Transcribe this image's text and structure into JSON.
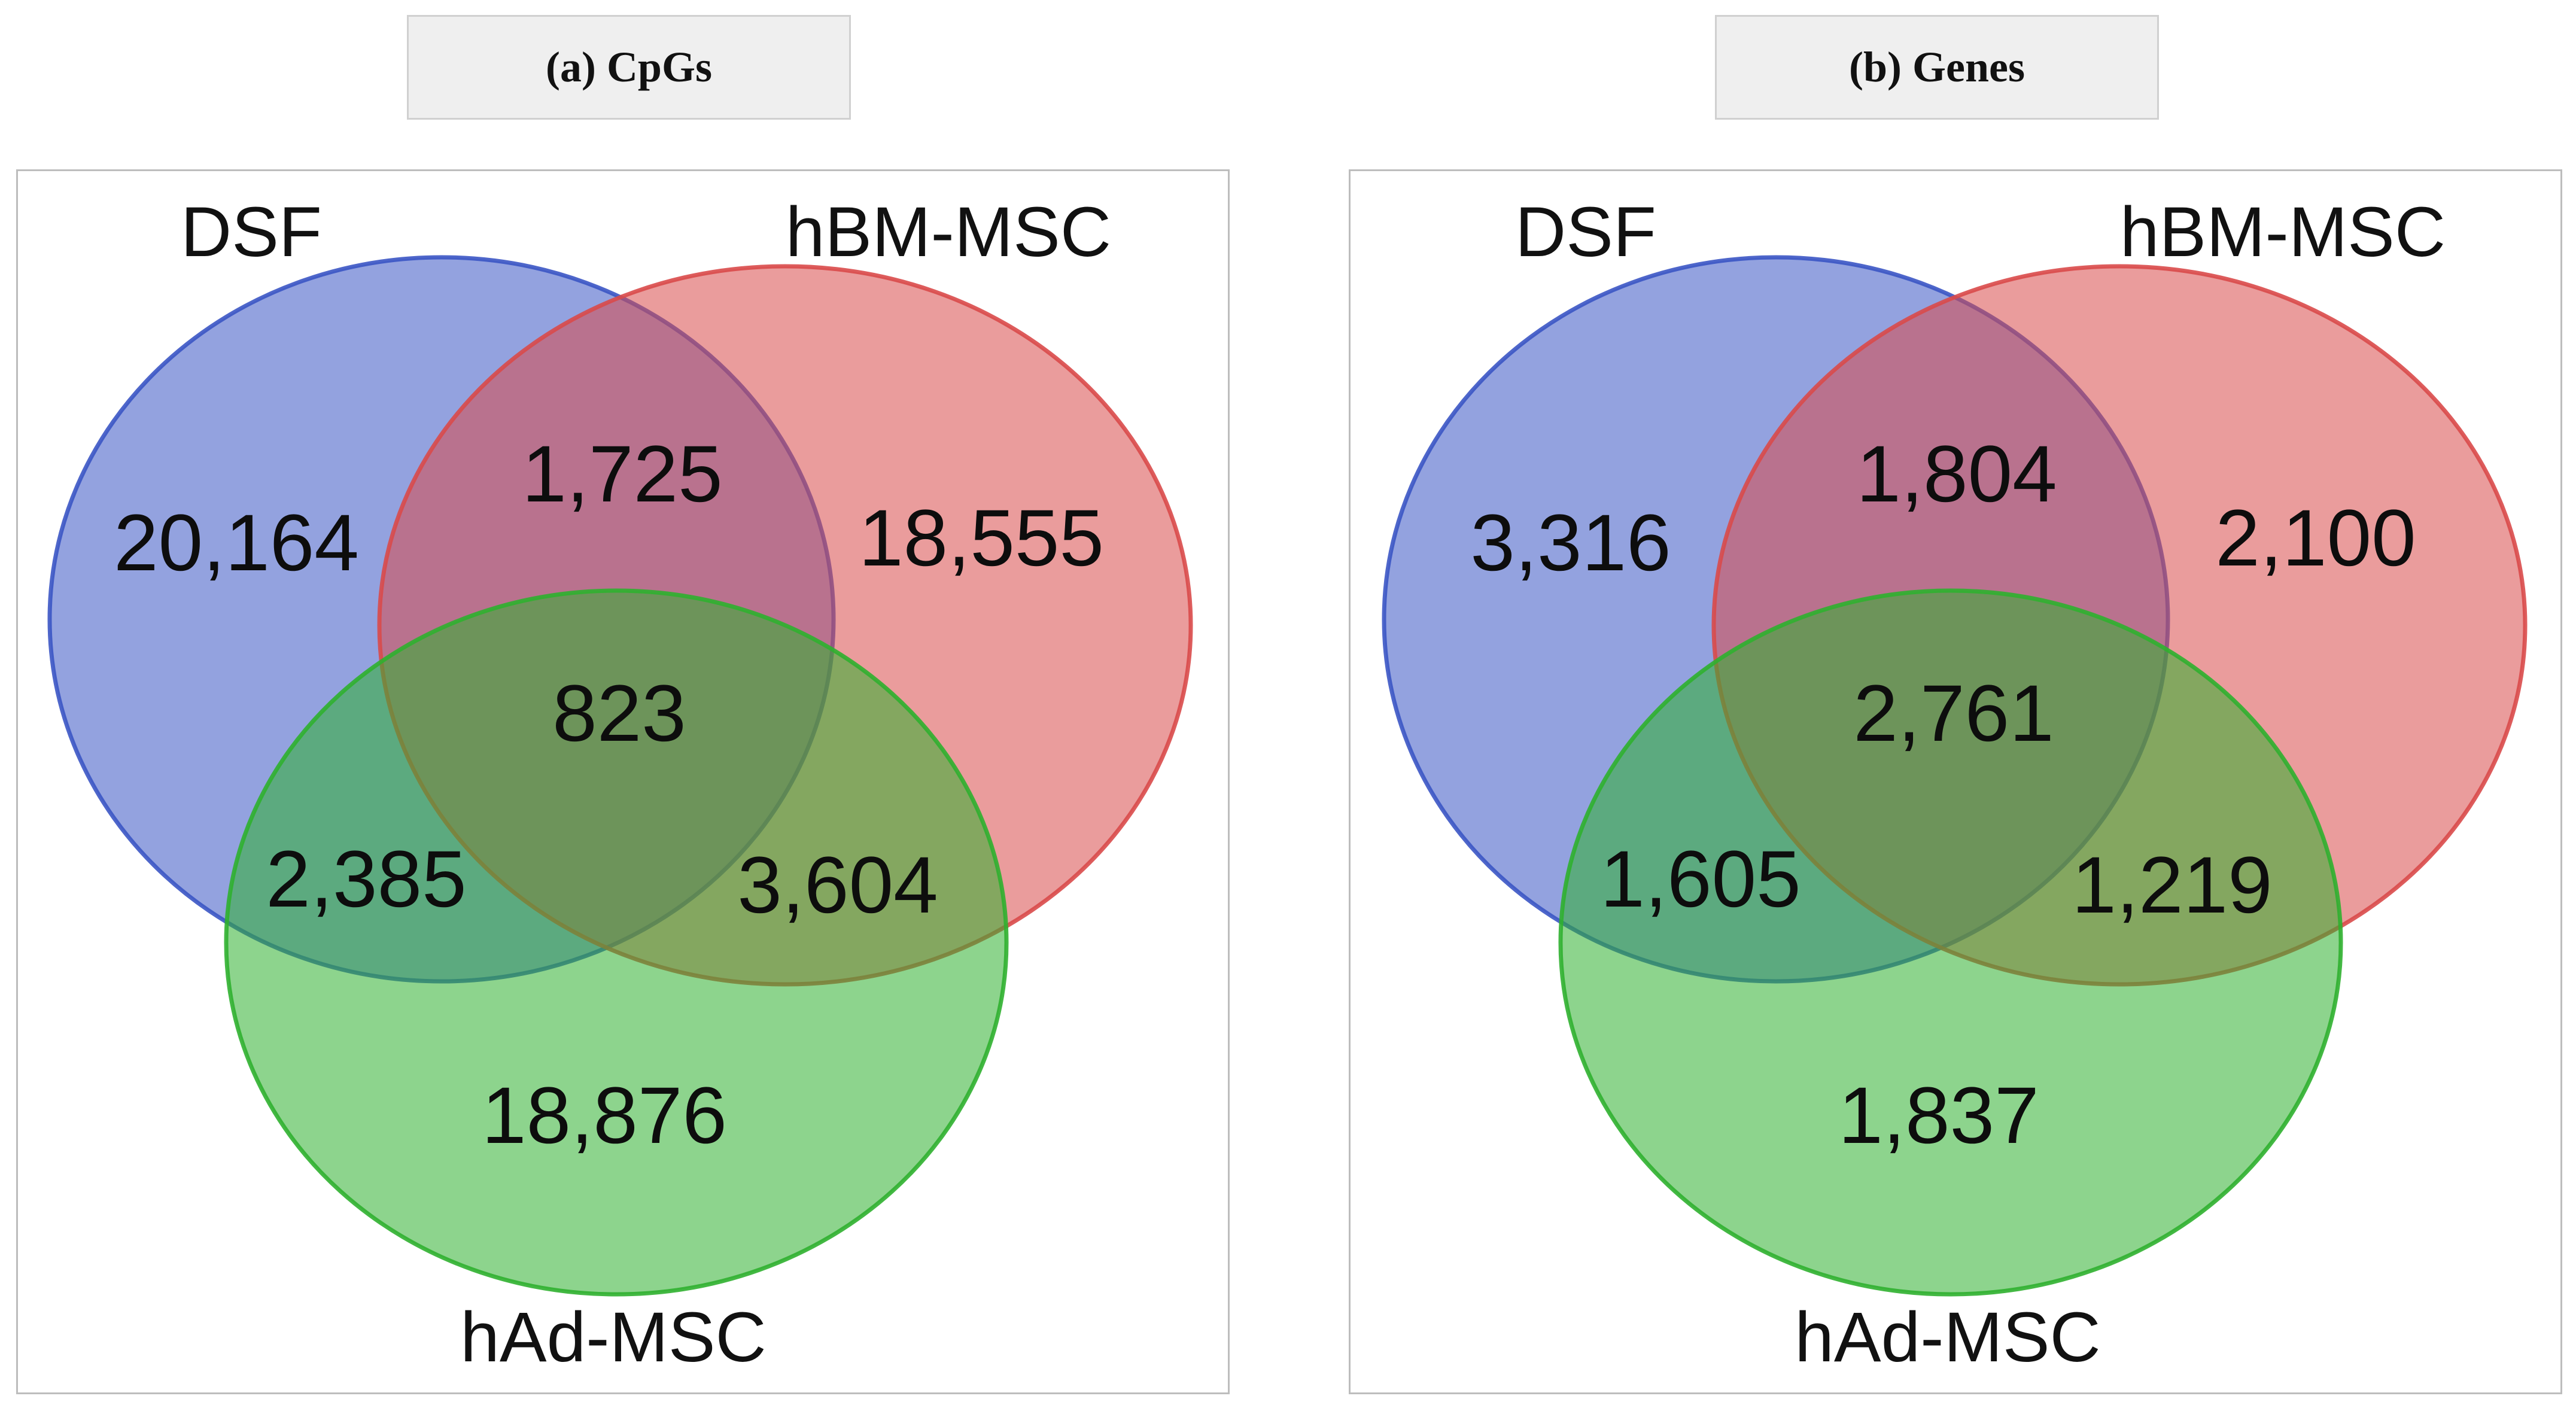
{
  "colors": {
    "dsf": "#3b55c4",
    "hbm_msc": "#d94a4a",
    "had_msc": "#2fb02f"
  },
  "panels": [
    {
      "title": "(a) CpGs",
      "labels": {
        "a": "DSF",
        "b": "hBM-MSC",
        "c": "hAd-MSC"
      },
      "regions": {
        "a_only": "20,164",
        "ab": "1,725",
        "b_only": "18,555",
        "abc": "823",
        "ac": "2,385",
        "bc": "3,604",
        "c_only": "18,876"
      }
    },
    {
      "title": "(b) Genes",
      "labels": {
        "a": "DSF",
        "b": "hBM-MSC",
        "c": "hAd-MSC"
      },
      "regions": {
        "a_only": "3,316",
        "ab": "1,804",
        "b_only": "2,100",
        "abc": "2,761",
        "ac": "1,605",
        "bc": "1,219",
        "c_only": "1,837"
      }
    }
  ]
}
